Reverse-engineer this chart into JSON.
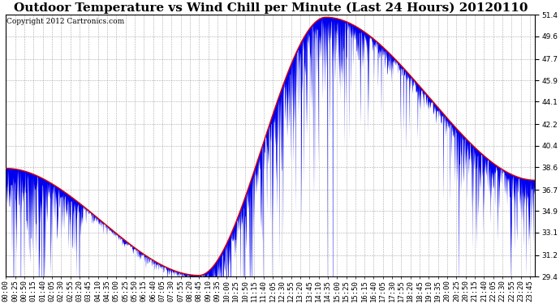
{
  "title": "Outdoor Temperature vs Wind Chill per Minute (Last 24 Hours) 20120110",
  "copyright": "Copyright 2012 Cartronics.com",
  "ylim": [
    29.4,
    51.4
  ],
  "yticks": [
    29.4,
    31.2,
    33.1,
    34.9,
    36.7,
    38.6,
    40.4,
    42.2,
    44.1,
    45.9,
    47.7,
    49.6,
    51.4
  ],
  "temp_color": "#dd0000",
  "windchill_color": "#0000ee",
  "bg_color": "#ffffff",
  "grid_color": "#aaaaaa",
  "title_fontsize": 11,
  "copyright_fontsize": 6.5,
  "tick_fontsize": 6.5
}
